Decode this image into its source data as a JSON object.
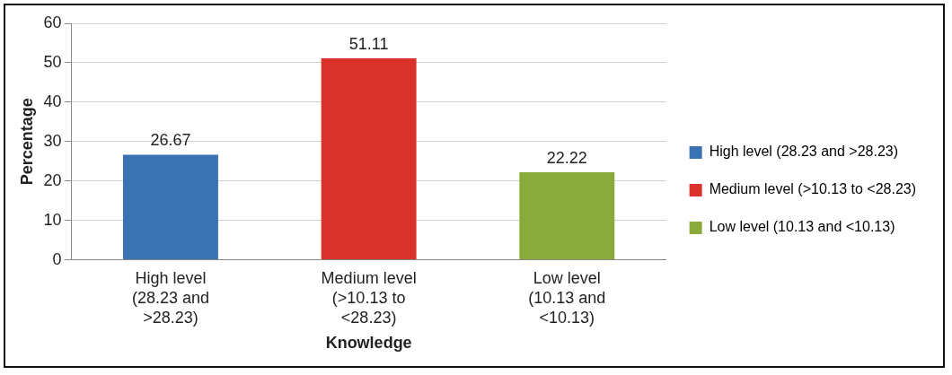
{
  "chart_data": {
    "type": "bar",
    "categories": [
      "High level (28.23 and >28.23)",
      "Medium level (>10.13 to <28.23)",
      "Low level (10.13 and <10.13)"
    ],
    "series": [
      {
        "name": "High level (28.23 and >28.23)",
        "color": "#3b72b4",
        "values": [
          26.67,
          null,
          null
        ]
      },
      {
        "name": "Medium level (>10.13 to <28.23)",
        "color": "#d8322b",
        "values": [
          null,
          51.11,
          null
        ]
      },
      {
        "name": "Low level (10.13 and <10.13)",
        "color": "#8aaa3c",
        "values": [
          null,
          null,
          22.22
        ]
      }
    ],
    "xlabel": "Knowledge",
    "ylabel": "Percentage",
    "ylim": [
      0,
      60
    ],
    "yticks": [
      0,
      10,
      20,
      30,
      40,
      50,
      60
    ],
    "grid": "y",
    "legend": "right",
    "data_labels": true
  }
}
